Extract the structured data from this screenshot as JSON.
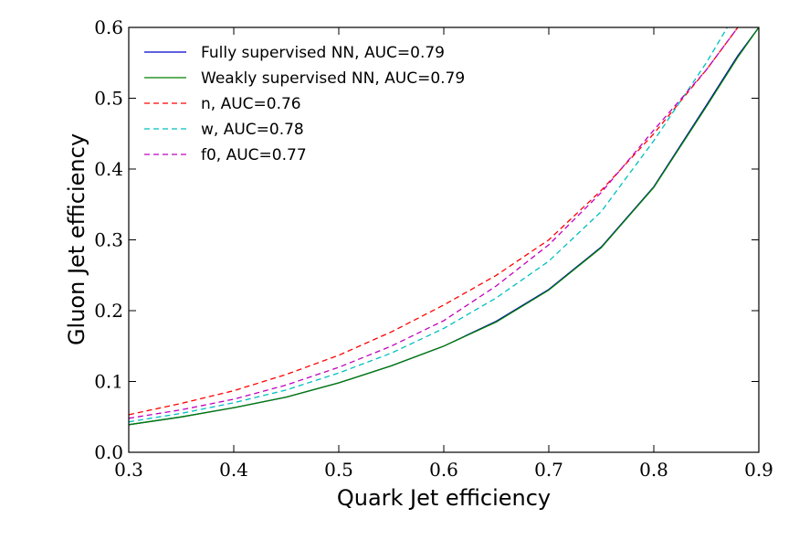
{
  "chart_data": {
    "type": "line",
    "title": "",
    "xlabel": "Quark Jet efficiency",
    "ylabel": "Gluon Jet efficiency",
    "xlim": [
      0.3,
      0.9
    ],
    "ylim": [
      0.0,
      0.6
    ],
    "xticks": [
      "0.3",
      "0.4",
      "0.5",
      "0.6",
      "0.7",
      "0.8",
      "0.9"
    ],
    "yticks": [
      "0.0",
      "0.1",
      "0.2",
      "0.3",
      "0.4",
      "0.5",
      "0.6"
    ],
    "legend_position": "top-left",
    "series": [
      {
        "name": "Fully supervised NN, AUC=0.79",
        "color": "#0000cc",
        "dash": "solid",
        "x": [
          0.3,
          0.35,
          0.4,
          0.45,
          0.5,
          0.55,
          0.6,
          0.65,
          0.7,
          0.75,
          0.8,
          0.85,
          0.88,
          0.9
        ],
        "y": [
          0.039,
          0.05,
          0.063,
          0.078,
          0.098,
          0.122,
          0.15,
          0.185,
          0.23,
          0.29,
          0.375,
          0.49,
          0.56,
          0.6
        ]
      },
      {
        "name": "Weakly supervised NN, AUC=0.79",
        "color": "#008000",
        "dash": "solid",
        "x": [
          0.3,
          0.35,
          0.4,
          0.45,
          0.5,
          0.55,
          0.6,
          0.65,
          0.7,
          0.75,
          0.8,
          0.85,
          0.88,
          0.9
        ],
        "y": [
          0.039,
          0.05,
          0.063,
          0.078,
          0.098,
          0.122,
          0.15,
          0.184,
          0.229,
          0.289,
          0.374,
          0.488,
          0.558,
          0.6
        ]
      },
      {
        "name": "n, AUC=0.76",
        "color": "#ff0000",
        "dash": "dashed",
        "x": [
          0.3,
          0.35,
          0.4,
          0.45,
          0.5,
          0.55,
          0.6,
          0.65,
          0.7,
          0.75,
          0.8,
          0.85,
          0.88
        ],
        "y": [
          0.053,
          0.069,
          0.087,
          0.11,
          0.137,
          0.17,
          0.208,
          0.25,
          0.3,
          0.37,
          0.45,
          0.54,
          0.6
        ]
      },
      {
        "name": "w, AUC=0.78",
        "color": "#00bfbf",
        "dash": "dashed",
        "x": [
          0.3,
          0.35,
          0.4,
          0.45,
          0.5,
          0.55,
          0.6,
          0.65,
          0.7,
          0.75,
          0.8,
          0.85,
          0.87
        ],
        "y": [
          0.043,
          0.055,
          0.07,
          0.088,
          0.112,
          0.14,
          0.175,
          0.218,
          0.27,
          0.34,
          0.44,
          0.55,
          0.6
        ]
      },
      {
        "name": "f0, AUC=0.77",
        "color": "#bf00bf",
        "dash": "dashed",
        "x": [
          0.3,
          0.35,
          0.4,
          0.45,
          0.5,
          0.55,
          0.6,
          0.65,
          0.7,
          0.75,
          0.8,
          0.85,
          0.88
        ],
        "y": [
          0.048,
          0.06,
          0.075,
          0.095,
          0.12,
          0.15,
          0.186,
          0.235,
          0.293,
          0.367,
          0.455,
          0.54,
          0.6
        ]
      }
    ]
  }
}
